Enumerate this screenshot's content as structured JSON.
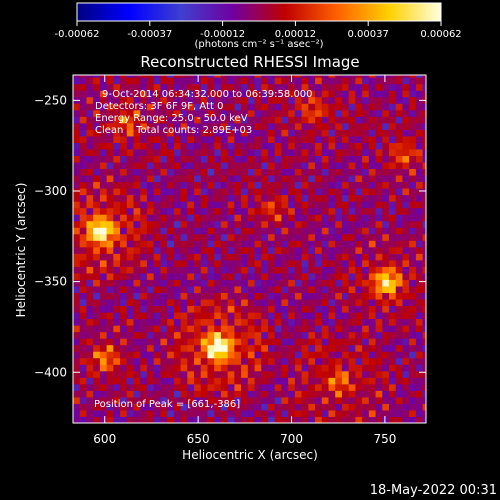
{
  "chart_data": {
    "type": "heatmap",
    "title": "Reconstructed RHESSI Image",
    "xlabel": "Heliocentric X (arcsec)",
    "ylabel": "Heliocentric Y (arcsec)",
    "xlim": [
      583,
      772
    ],
    "ylim": [
      -428,
      -236
    ],
    "x_ticks": [
      600,
      650,
      700,
      750
    ],
    "y_ticks": [
      -250,
      -300,
      -350,
      -400
    ],
    "colorbar": {
      "ticks": [
        "-0.00062",
        "-0.00037",
        "-0.00012",
        "0.00012",
        "0.00037",
        "0.00062"
      ],
      "range": [
        -0.00062,
        0.00062
      ],
      "unit_label": "(photons cm⁻² s⁻¹ asec⁻²)",
      "colormap": [
        "#000080",
        "#0000ff",
        "#3f3fd0",
        "#7000a0",
        "#c00000",
        "#ff6000",
        "#ffd000",
        "#ffffe0"
      ]
    },
    "annotations": [
      "9-Oct-2014 06:34:32.000 to 06:39:58.000",
      "Detectors: 3F 6F 9F, Att 0",
      "Energy Range: 25.0 - 50.0 keV",
      "Clean    Total counts: 2.89E+03",
      "Position of Peak = [661,-386]"
    ],
    "peaks": [
      {
        "x": 661,
        "y": -386,
        "value": 0.00062,
        "spread": 12
      },
      {
        "x": 598,
        "y": -322,
        "value": 0.00055,
        "spread": 12
      },
      {
        "x": 751,
        "y": -350,
        "value": 0.00045,
        "spread": 10
      },
      {
        "x": 600,
        "y": -392,
        "value": 0.00028,
        "spread": 9
      },
      {
        "x": 725,
        "y": -405,
        "value": 0.00025,
        "spread": 14
      },
      {
        "x": 612,
        "y": -262,
        "value": 0.00022,
        "spread": 11
      },
      {
        "x": 712,
        "y": -255,
        "value": 0.00018,
        "spread": 12
      },
      {
        "x": 690,
        "y": -310,
        "value": 0.00016,
        "spread": 10
      },
      {
        "x": 760,
        "y": -280,
        "value": 0.0002,
        "spread": 10
      }
    ],
    "timestamp": "18-May-2022 00:31"
  }
}
